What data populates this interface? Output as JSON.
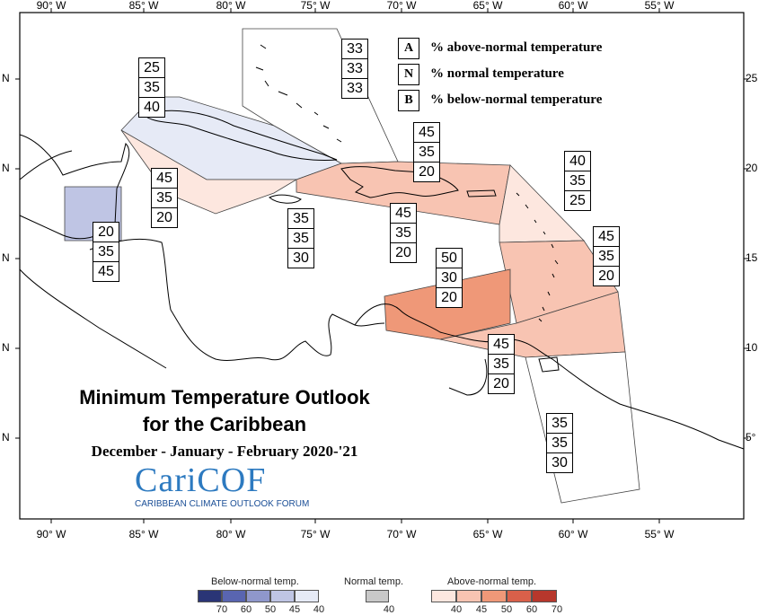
{
  "map": {
    "title_line1": "Minimum Temperature Outlook",
    "title_line2": "for the Caribbean",
    "subtitle": "December - January - February 2020-'21",
    "logo_text": "CariCOF",
    "logo_subtitle": "CARIBBEAN CLIMATE OUTLOOK FORUM",
    "lon_ticks": [
      "90° W",
      "85° W",
      "80° W",
      "75° W",
      "70° W",
      "65° W",
      "60° W",
      "55° W"
    ],
    "lat_ticks_left": [
      "N",
      "N",
      "N",
      "N",
      "N"
    ],
    "lat_ticks_right": [
      "25",
      "20",
      "15",
      "10",
      "5°"
    ]
  },
  "legend": {
    "items": [
      {
        "letter": "A",
        "text": "% above-normal temperature"
      },
      {
        "letter": "N",
        "text": "% normal temperature"
      },
      {
        "letter": "B",
        "text": "% below-normal temperature"
      }
    ]
  },
  "regions": [
    {
      "values": [
        "33",
        "33",
        "33"
      ]
    },
    {
      "values": [
        "25",
        "35",
        "40"
      ]
    },
    {
      "values": [
        "45",
        "35",
        "20"
      ]
    },
    {
      "values": [
        "20",
        "35",
        "45"
      ]
    },
    {
      "values": [
        "35",
        "35",
        "30"
      ]
    },
    {
      "values": [
        "45",
        "35",
        "20"
      ]
    },
    {
      "values": [
        "45",
        "35",
        "20"
      ]
    },
    {
      "values": [
        "40",
        "35",
        "25"
      ]
    },
    {
      "values": [
        "45",
        "35",
        "20"
      ]
    },
    {
      "values": [
        "50",
        "30",
        "20"
      ]
    },
    {
      "values": [
        "45",
        "35",
        "20"
      ]
    },
    {
      "values": [
        "35",
        "35",
        "30"
      ]
    }
  ],
  "colorbar": {
    "below_title": "Below-normal temp.",
    "normal_title": "Normal temp.",
    "above_title": "Above-normal temp.",
    "below_labels": [
      "70",
      "60",
      "50",
      "45",
      "40"
    ],
    "normal_labels": [
      "40"
    ],
    "above_labels": [
      "40",
      "45",
      "50",
      "60",
      "70"
    ],
    "below_colors": [
      "#2a3576",
      "#5965b0",
      "#8f97cb",
      "#bfc5e4",
      "#e6eaf6"
    ],
    "normal_color": "#c8c8c8",
    "above_colors": [
      "#fde7df",
      "#f8c4b2",
      "#ef9878",
      "#d9604a",
      "#b7372c"
    ]
  }
}
